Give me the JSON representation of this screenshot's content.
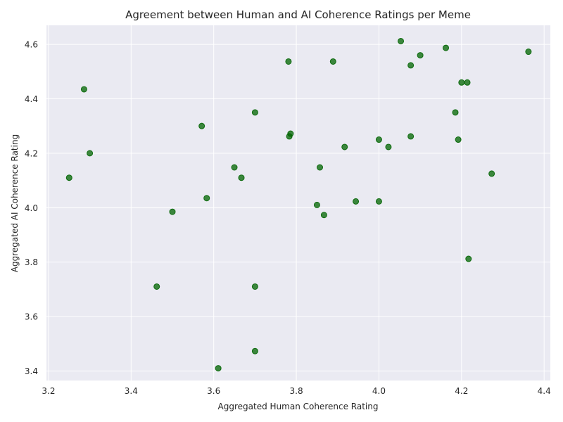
{
  "chart_data": {
    "type": "scatter",
    "title": "Agreement between Human and AI Coherence Ratings per Meme",
    "xlabel": "Aggregated Human Coherence Rating",
    "ylabel": "Aggregated AI Coherence Rating",
    "xlim": [
      3.195,
      4.415
    ],
    "ylim": [
      3.365,
      4.67
    ],
    "xticks": [
      "3.2",
      "3.4",
      "3.6",
      "3.8",
      "4.0",
      "4.2",
      "4.4"
    ],
    "yticks": [
      "3.4",
      "3.6",
      "3.8",
      "4.0",
      "4.2",
      "4.4",
      "4.6"
    ],
    "grid": true,
    "background": "#eaeaf2",
    "point_color": "#006400",
    "points": [
      {
        "x": 3.25,
        "y": 4.11
      },
      {
        "x": 3.286,
        "y": 4.435
      },
      {
        "x": 3.3,
        "y": 4.2
      },
      {
        "x": 3.462,
        "y": 3.71
      },
      {
        "x": 3.5,
        "y": 3.985
      },
      {
        "x": 3.571,
        "y": 4.3
      },
      {
        "x": 3.583,
        "y": 4.035
      },
      {
        "x": 3.611,
        "y": 3.41
      },
      {
        "x": 3.65,
        "y": 4.148
      },
      {
        "x": 3.667,
        "y": 4.11
      },
      {
        "x": 3.7,
        "y": 4.35
      },
      {
        "x": 3.7,
        "y": 3.71
      },
      {
        "x": 3.7,
        "y": 3.473
      },
      {
        "x": 3.781,
        "y": 4.537
      },
      {
        "x": 3.783,
        "y": 4.262
      },
      {
        "x": 3.786,
        "y": 4.272
      },
      {
        "x": 3.85,
        "y": 4.01
      },
      {
        "x": 3.857,
        "y": 4.148
      },
      {
        "x": 3.867,
        "y": 3.973
      },
      {
        "x": 3.889,
        "y": 4.537
      },
      {
        "x": 3.917,
        "y": 4.223
      },
      {
        "x": 3.944,
        "y": 4.023
      },
      {
        "x": 4.0,
        "y": 4.25
      },
      {
        "x": 4.0,
        "y": 4.023
      },
      {
        "x": 4.023,
        "y": 4.223
      },
      {
        "x": 4.053,
        "y": 4.612
      },
      {
        "x": 4.077,
        "y": 4.523
      },
      {
        "x": 4.077,
        "y": 4.262
      },
      {
        "x": 4.1,
        "y": 4.56
      },
      {
        "x": 4.162,
        "y": 4.587
      },
      {
        "x": 4.185,
        "y": 4.35
      },
      {
        "x": 4.192,
        "y": 4.25
      },
      {
        "x": 4.2,
        "y": 4.46
      },
      {
        "x": 4.214,
        "y": 4.46
      },
      {
        "x": 4.217,
        "y": 3.812
      },
      {
        "x": 4.273,
        "y": 4.125
      },
      {
        "x": 4.362,
        "y": 4.573
      }
    ]
  }
}
